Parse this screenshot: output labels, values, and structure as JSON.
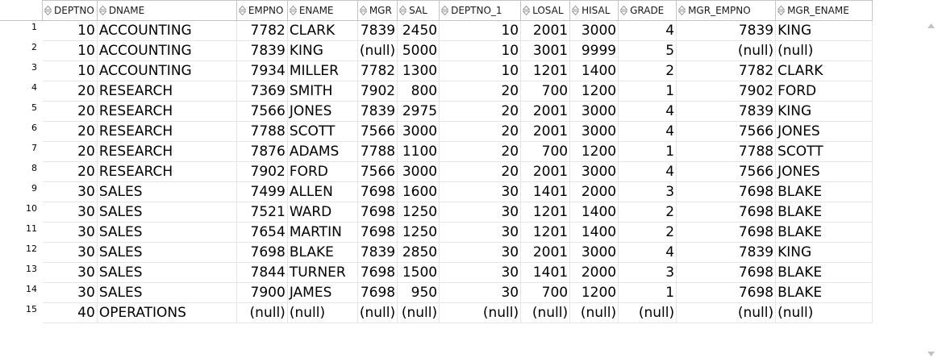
{
  "columns": [
    "DEPTNO",
    "DNAME",
    "EMPNO",
    "ENAME",
    "MGR",
    "SAL",
    "DEPTNO_1",
    "LOSAL",
    "HISAL",
    "GRADE",
    "MGR_EMPNO",
    "MGR_ENAME"
  ],
  "align": [
    "r",
    "l",
    "r",
    "l",
    "r",
    "r",
    "r",
    "r",
    "r",
    "r",
    "r",
    "l"
  ],
  "rows": [
    [
      "10",
      "ACCOUNTING",
      "7782",
      "CLARK",
      "7839",
      "2450",
      "10",
      "2001",
      "3000",
      "4",
      "7839",
      "KING"
    ],
    [
      "10",
      "ACCOUNTING",
      "7839",
      "KING",
      "(null)",
      "5000",
      "10",
      "3001",
      "9999",
      "5",
      "(null)",
      "(null)"
    ],
    [
      "10",
      "ACCOUNTING",
      "7934",
      "MILLER",
      "7782",
      "1300",
      "10",
      "1201",
      "1400",
      "2",
      "7782",
      "CLARK"
    ],
    [
      "20",
      "RESEARCH",
      "7369",
      "SMITH",
      "7902",
      "800",
      "20",
      "700",
      "1200",
      "1",
      "7902",
      "FORD"
    ],
    [
      "20",
      "RESEARCH",
      "7566",
      "JONES",
      "7839",
      "2975",
      "20",
      "2001",
      "3000",
      "4",
      "7839",
      "KING"
    ],
    [
      "20",
      "RESEARCH",
      "7788",
      "SCOTT",
      "7566",
      "3000",
      "20",
      "2001",
      "3000",
      "4",
      "7566",
      "JONES"
    ],
    [
      "20",
      "RESEARCH",
      "7876",
      "ADAMS",
      "7788",
      "1100",
      "20",
      "700",
      "1200",
      "1",
      "7788",
      "SCOTT"
    ],
    [
      "20",
      "RESEARCH",
      "7902",
      "FORD",
      "7566",
      "3000",
      "20",
      "2001",
      "3000",
      "4",
      "7566",
      "JONES"
    ],
    [
      "30",
      "SALES",
      "7499",
      "ALLEN",
      "7698",
      "1600",
      "30",
      "1401",
      "2000",
      "3",
      "7698",
      "BLAKE"
    ],
    [
      "30",
      "SALES",
      "7521",
      "WARD",
      "7698",
      "1250",
      "30",
      "1201",
      "1400",
      "2",
      "7698",
      "BLAKE"
    ],
    [
      "30",
      "SALES",
      "7654",
      "MARTIN",
      "7698",
      "1250",
      "30",
      "1201",
      "1400",
      "2",
      "7698",
      "BLAKE"
    ],
    [
      "30",
      "SALES",
      "7698",
      "BLAKE",
      "7839",
      "2850",
      "30",
      "2001",
      "3000",
      "4",
      "7839",
      "KING"
    ],
    [
      "30",
      "SALES",
      "7844",
      "TURNER",
      "7698",
      "1500",
      "30",
      "1401",
      "2000",
      "3",
      "7698",
      "BLAKE"
    ],
    [
      "30",
      "SALES",
      "7900",
      "JAMES",
      "7698",
      "950",
      "30",
      "700",
      "1200",
      "1",
      "7698",
      "BLAKE"
    ],
    [
      "40",
      "OPERATIONS",
      "(null)",
      "(null)",
      "(null)",
      "(null)",
      "(null)",
      "(null)",
      "(null)",
      "(null)",
      "(null)",
      "(null)"
    ]
  ]
}
